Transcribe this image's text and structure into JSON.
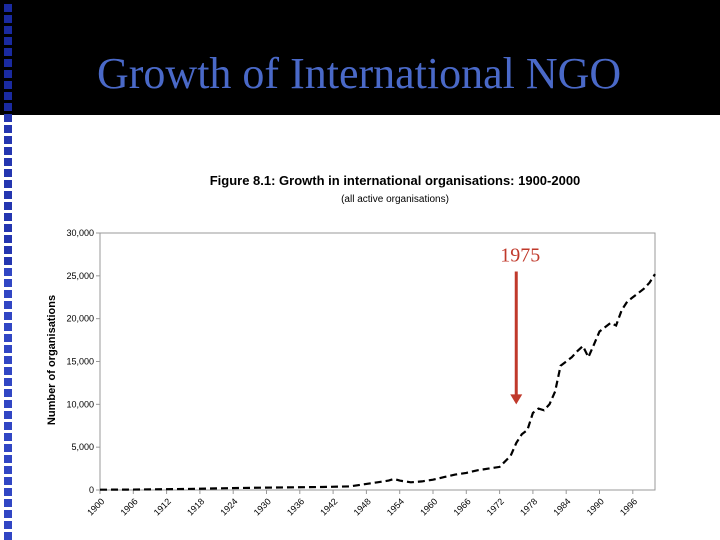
{
  "slide": {
    "title": "Growth of International NGO",
    "annotation_label": "1975",
    "accent_color": "#c0392b",
    "title_color": "#4a69c8"
  },
  "chart_data": {
    "type": "line",
    "title": "Figure 8.1: Growth in international organisations: 1900-2000",
    "subtitle": "(all active organisations)",
    "xlabel": "",
    "ylabel": "Number of organisations",
    "xlim": [
      1900,
      2000
    ],
    "ylim": [
      0,
      30000
    ],
    "yticks": [
      0,
      5000,
      10000,
      15000,
      20000,
      25000,
      30000
    ],
    "ytick_labels": [
      "0",
      "5,000",
      "10,000",
      "15,000",
      "20,000",
      "25,000",
      "30,000"
    ],
    "xticks": [
      1900,
      1906,
      1912,
      1918,
      1924,
      1930,
      1936,
      1942,
      1948,
      1954,
      1960,
      1966,
      1972,
      1978,
      1984,
      1990,
      1996
    ],
    "grid": false,
    "legend": "none",
    "series": [
      {
        "line_style": "dashed",
        "color": "#000000",
        "x": [
          1900,
          1905,
          1910,
          1915,
          1920,
          1925,
          1930,
          1935,
          1940,
          1945,
          1950,
          1952,
          1953,
          1954,
          1956,
          1958,
          1960,
          1962,
          1964,
          1966,
          1968,
          1970,
          1972,
          1974,
          1975,
          1976,
          1977,
          1978,
          1979,
          1980,
          1981,
          1982,
          1983,
          1984,
          1985,
          1986,
          1987,
          1988,
          1989,
          1990,
          1991,
          1992,
          1993,
          1994,
          1995,
          1996,
          1997,
          1998,
          1999,
          2000
        ],
        "y": [
          30,
          50,
          80,
          120,
          180,
          230,
          280,
          320,
          350,
          420,
          900,
          1100,
          1300,
          1100,
          900,
          1000,
          1200,
          1500,
          1800,
          2000,
          2300,
          2500,
          2700,
          4000,
          5500,
          6500,
          7000,
          9000,
          9500,
          9300,
          10000,
          11500,
          14500,
          15000,
          15500,
          16200,
          16800,
          15500,
          17000,
          18500,
          19000,
          19500,
          19200,
          21000,
          22000,
          22500,
          23000,
          23500,
          24200,
          25200
        ]
      }
    ],
    "annotation": {
      "x": 1975,
      "label": "1975",
      "arrow_from_y": 25500,
      "arrow_to_y": 10000
    }
  }
}
